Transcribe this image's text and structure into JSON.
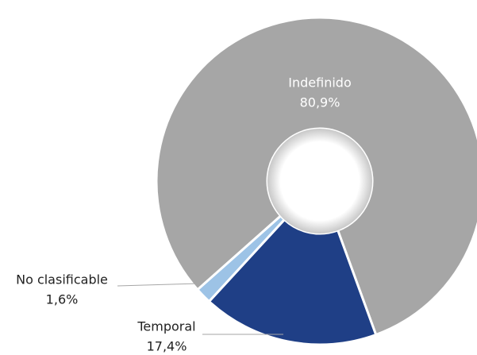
{
  "chart_data": {
    "type": "pie",
    "categories": [
      "Indefinido",
      "Temporal",
      "No clasificable"
    ],
    "values": [
      80.9,
      17.4,
      1.6
    ],
    "value_labels": [
      "80,9%",
      "17,4%",
      "1,6%"
    ],
    "colors": [
      "#a6a6a6",
      "#1f3f86",
      "#9dc3e6"
    ]
  }
}
